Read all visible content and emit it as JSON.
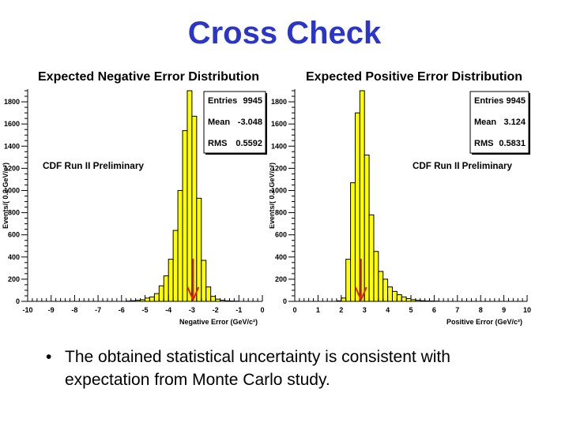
{
  "slide": {
    "title": "Cross Check",
    "bullet_marker": "•",
    "bullet_text": "The obtained statistical uncertainty is consistent with expectation from Monte Carlo study."
  },
  "colors": {
    "title": "#2b35c8",
    "bar_fill": "#ffff00",
    "bar_stroke": "#000000",
    "arrow": "#e02020"
  },
  "chart_data": [
    {
      "type": "bar",
      "title": "Expected Negative Error Distribution",
      "xlabel": "Negative Error (GeV/c²)",
      "ylabel": "Events/( 0.2 GeV/c²)",
      "annotation": "CDF Run II Preliminary",
      "xlim": [
        -10,
        0
      ],
      "ylim": [
        0,
        1900
      ],
      "xticks": [
        "-10",
        "-9",
        "-8",
        "-7",
        "-6",
        "-5",
        "-4",
        "-3",
        "-2",
        "-1",
        "0"
      ],
      "yticks": [
        "0",
        "200",
        "400",
        "600",
        "800",
        "1000",
        "1200",
        "1400",
        "1600",
        "1800"
      ],
      "bin_width": 0.2,
      "bin_start": [
        -5.8,
        -5.6,
        -5.4,
        -5.2,
        -5.0,
        -4.8,
        -4.6,
        -4.4,
        -4.2,
        -4.0,
        -3.8,
        -3.6,
        -3.4,
        -3.2,
        -3.0,
        -2.8,
        -2.6,
        -2.4,
        -2.2,
        -2.0,
        -1.8,
        -1.6,
        -1.4,
        -1.2
      ],
      "values": [
        3,
        6,
        10,
        15,
        30,
        40,
        70,
        140,
        230,
        380,
        640,
        1000,
        1540,
        1950,
        1670,
        930,
        370,
        130,
        45,
        20,
        10,
        5,
        3,
        2
      ],
      "arrow_x": -2.95,
      "stats": {
        "entries_label": "Entries",
        "entries": "9945",
        "mean_label": "Mean",
        "mean": "-3.048",
        "rms_label": "RMS",
        "rms": "0.5592"
      }
    },
    {
      "type": "bar",
      "title": "Expected Positive Error Distribution",
      "xlabel": "Positive Error (GeV/c²)",
      "ylabel": "Events/( 0.2 GeV/c²)",
      "annotation": "CDF Run II Preliminary",
      "xlim": [
        0,
        10
      ],
      "ylim": [
        0,
        1900
      ],
      "xticks": [
        "0",
        "1",
        "2",
        "3",
        "4",
        "5",
        "6",
        "7",
        "8",
        "9",
        "10"
      ],
      "yticks": [
        "0",
        "200",
        "400",
        "600",
        "800",
        "1000",
        "1200",
        "1400",
        "1600",
        "1800"
      ],
      "bin_width": 0.2,
      "bin_start": [
        1.8,
        2.0,
        2.2,
        2.4,
        2.6,
        2.8,
        3.0,
        3.2,
        3.4,
        3.6,
        3.8,
        4.0,
        4.2,
        4.4,
        4.6,
        4.8,
        5.0,
        5.2,
        5.4,
        5.6,
        5.8,
        6.0
      ],
      "values": [
        5,
        30,
        380,
        1070,
        1700,
        1900,
        1320,
        780,
        450,
        270,
        200,
        130,
        90,
        60,
        40,
        25,
        15,
        10,
        6,
        4,
        3,
        2
      ],
      "arrow_x": 2.85,
      "stats": {
        "entries_label": "Entries",
        "entries": "9945",
        "mean_label": "Mean",
        "mean": "3.124",
        "rms_label": "RMS",
        "rms": "0.5831"
      }
    }
  ]
}
